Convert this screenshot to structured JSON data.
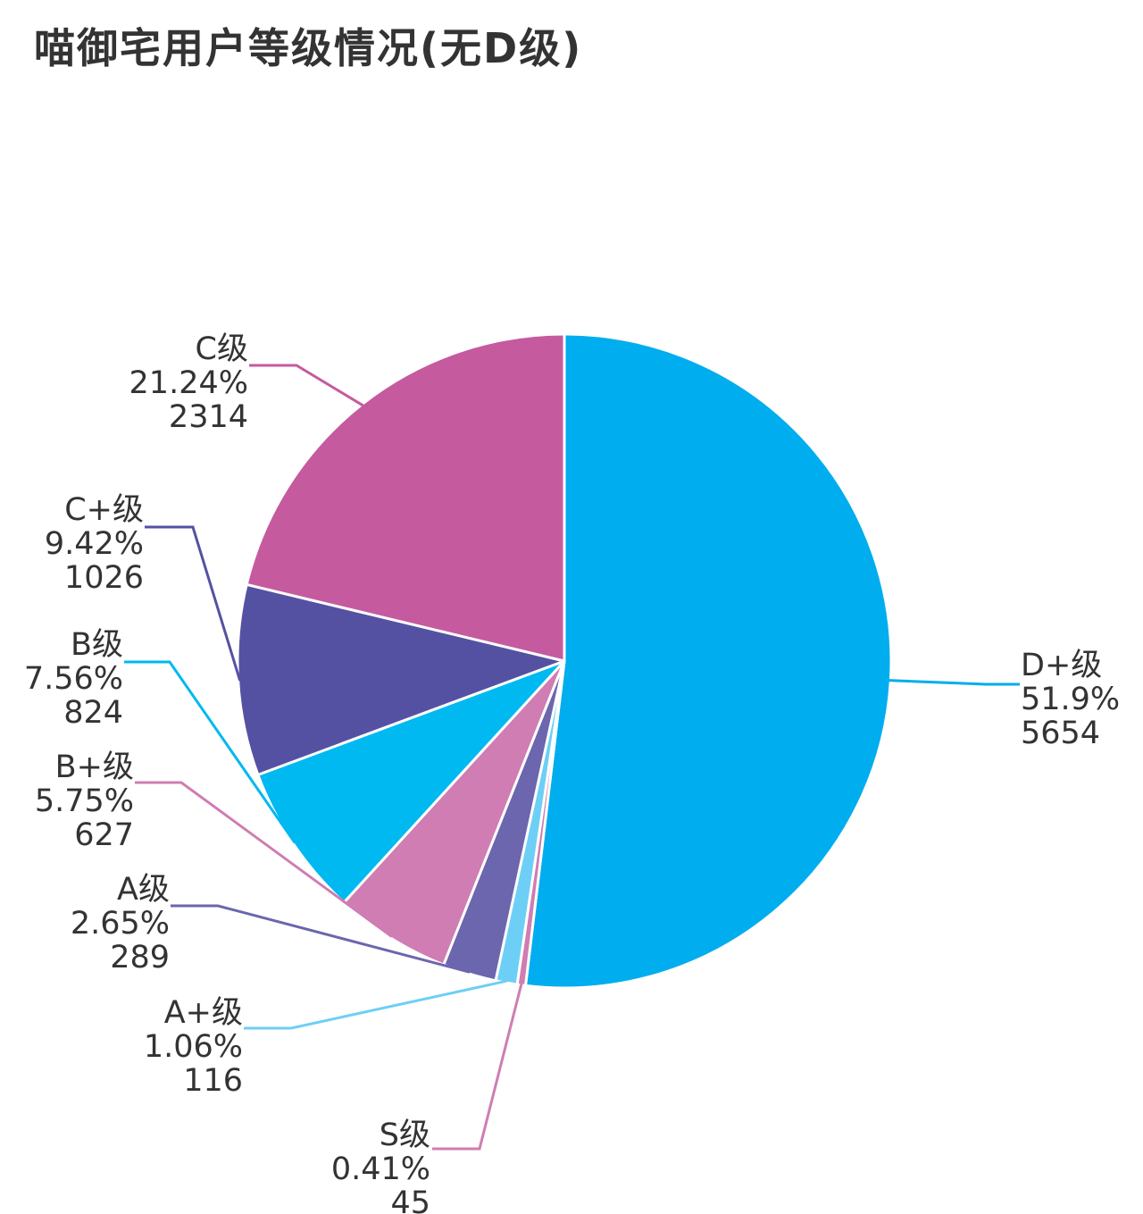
{
  "chart_data": {
    "type": "pie",
    "title": "喵御宅用户等级情况(无D级)",
    "slices": [
      {
        "label": "D+级",
        "percent": "51.9%",
        "value": 5654,
        "color": "#00adee"
      },
      {
        "label": "S级",
        "percent": "0.41%",
        "value": 45,
        "color": "#cf7db2"
      },
      {
        "label": "A+级",
        "percent": "1.06%",
        "value": 116,
        "color": "#6dcff6"
      },
      {
        "label": "A级",
        "percent": "2.65%",
        "value": 289,
        "color": "#6b66ad"
      },
      {
        "label": "B+级",
        "percent": "5.75%",
        "value": 627,
        "color": "#cf7db2"
      },
      {
        "label": "B级",
        "percent": "7.56%",
        "value": 824,
        "color": "#00b9f1"
      },
      {
        "label": "C+级",
        "percent": "9.42%",
        "value": 1026,
        "color": "#5551a2"
      },
      {
        "label": "C级",
        "percent": "21.24%",
        "value": 2314,
        "color": "#c55a9f"
      }
    ],
    "start_angle": "top",
    "direction": "clockwise",
    "labels": "outside-with-leader-lines",
    "label_fields": [
      "name",
      "percent",
      "value"
    ]
  }
}
